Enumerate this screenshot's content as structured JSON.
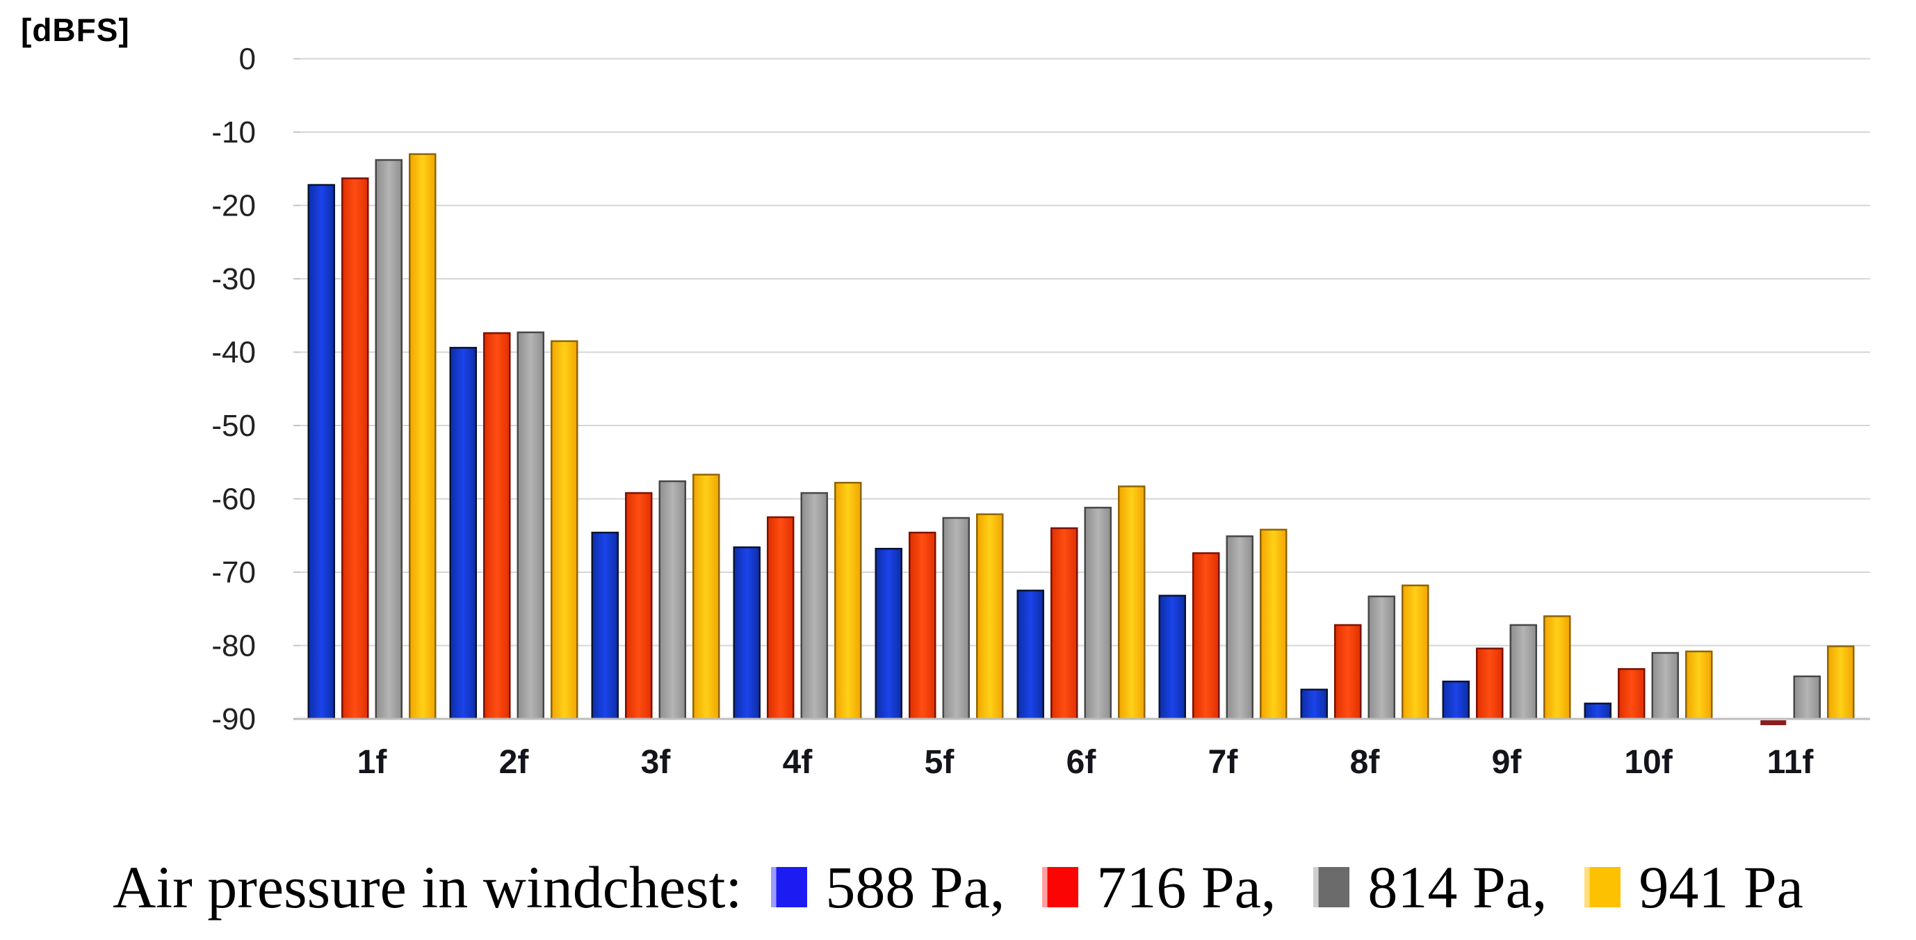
{
  "title": "[dBFS]",
  "chart_data": {
    "type": "bar",
    "title": "",
    "ylabel": "[dBFS]",
    "xlabel": "",
    "ylim": [
      -90,
      0
    ],
    "yticks": [
      0,
      -10,
      -20,
      -30,
      -40,
      -50,
      -60,
      -70,
      -80,
      -90
    ],
    "grid": true,
    "legend_position": "bottom-caption",
    "categories": [
      "1f",
      "2f",
      "3f",
      "4f",
      "5f",
      "6f",
      "7f",
      "8f",
      "9f",
      "10f",
      "11f"
    ],
    "series": [
      {
        "name": "588 Pa",
        "values": [
          -17.2,
          -39.4,
          -64.6,
          -66.6,
          -66.8,
          -72.5,
          -73.2,
          -86.0,
          -84.9,
          -87.9,
          null
        ],
        "bar": {
          "edge": "#0c2fa8",
          "light": "#1b43ea",
          "stroke": "#081233"
        },
        "legend": {
          "main": "#1c1cf2",
          "highlight": "#9d9dff"
        }
      },
      {
        "name": "716 Pa",
        "values": [
          -16.3,
          -37.4,
          -59.2,
          -62.5,
          -64.6,
          -64.0,
          -67.4,
          -77.2,
          -80.4,
          -83.2,
          -90.3
        ],
        "bar": {
          "edge": "#e03000",
          "light": "#ff4d12",
          "stroke": "#7c1000"
        },
        "legend": {
          "main": "#fb0404",
          "highlight": "#ffa0a0"
        }
      },
      {
        "name": "814 Pa",
        "values": [
          -13.8,
          -37.3,
          -57.6,
          -59.2,
          -62.6,
          -61.2,
          -65.1,
          -73.3,
          -77.2,
          -81.0,
          -84.2
        ],
        "bar": {
          "edge": "#8f8f8f",
          "light": "#b4b4b4",
          "stroke": "#474747"
        },
        "legend": {
          "main": "#6b6b6b",
          "highlight": "#cfcfcf"
        }
      },
      {
        "name": "941 Pa",
        "values": [
          -13.0,
          -38.5,
          -56.7,
          -57.8,
          -62.1,
          -58.3,
          -64.2,
          -71.8,
          -76.0,
          -80.8,
          -80.1
        ],
        "bar": {
          "edge": "#f2a500",
          "light": "#ffd018",
          "stroke": "#8f6500"
        },
        "legend": {
          "main": "#fdc101",
          "highlight": "#ffe07a"
        }
      }
    ],
    "colors": {
      "gridline": "#d6d6d6",
      "baseline": "#bdbdbd",
      "tick": "#c4c4c4",
      "below_axis_sliver": "#8b1f1f"
    }
  },
  "caption": {
    "prefix": "Air pressure in windchest:",
    "items": [
      {
        "label": "588 Pa,"
      },
      {
        "label": "716 Pa,"
      },
      {
        "label": "814 Pa,"
      },
      {
        "label": "941 Pa"
      }
    ]
  }
}
